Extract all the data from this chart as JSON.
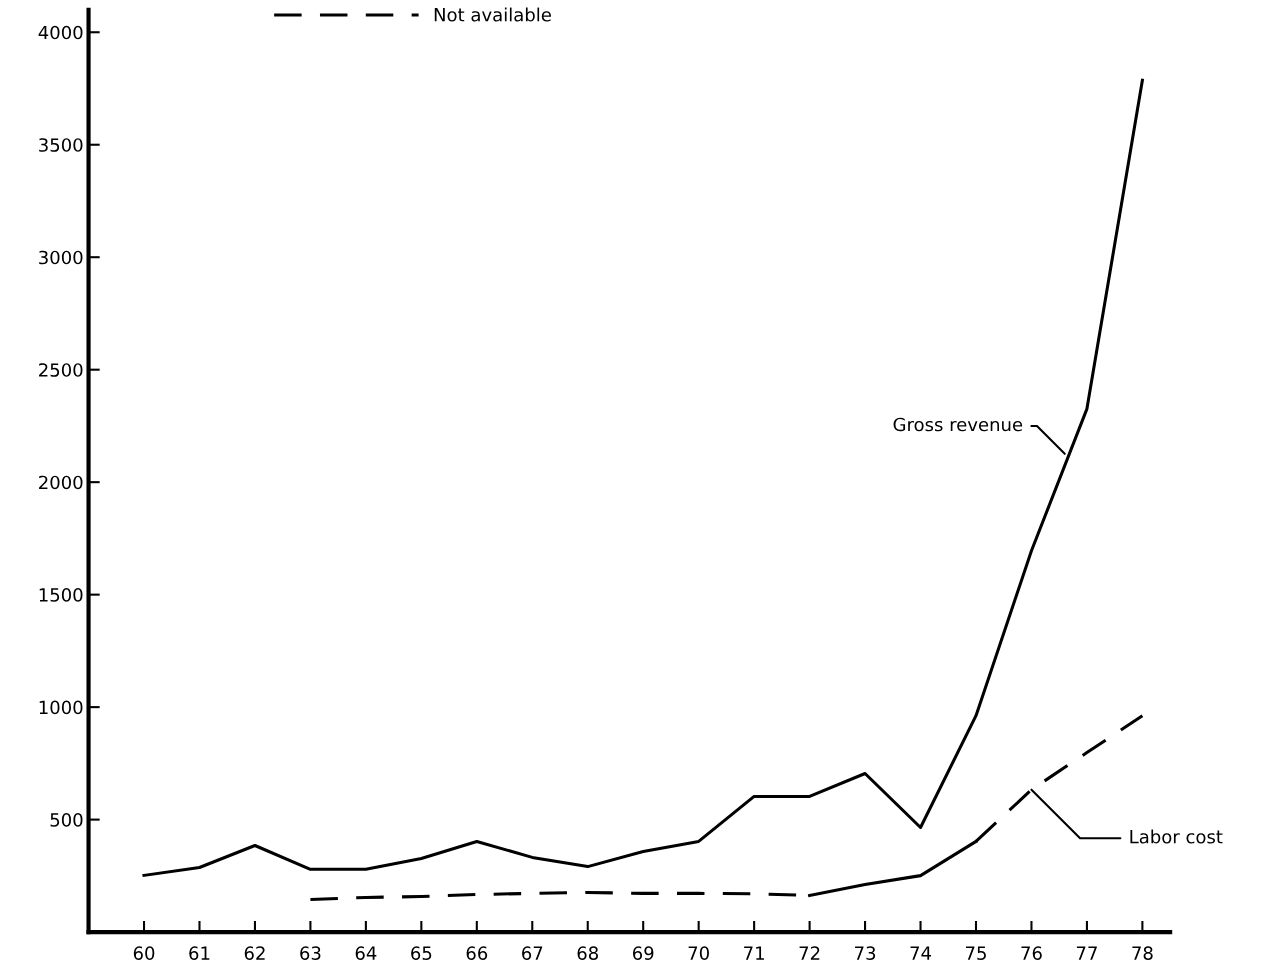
{
  "chart_data": {
    "type": "line",
    "x": [
      60,
      61,
      62,
      63,
      64,
      65,
      66,
      67,
      68,
      69,
      70,
      71,
      72,
      73,
      74,
      75,
      76,
      77,
      78
    ],
    "series": [
      {
        "color": "#000000",
        "line_style": "solid",
        "values": [
          252,
          287,
          385,
          279,
          279,
          327,
          403,
          332,
          291,
          358,
          403,
          603,
          603,
          705,
          465,
          962,
          1695,
          2326,
          3787
        ]
      },
      {
        "name": "Not available",
        "color": "#000000",
        "line_style": "dashed",
        "values": [
          null,
          null,
          null,
          145,
          154,
          158,
          167,
          172,
          176,
          172,
          172,
          170,
          163,
          null,
          null,
          403,
          633,
          798,
          962
        ]
      },
      {
        "color": "#000000",
        "line_style": "solid",
        "values": [
          null,
          null,
          null,
          null,
          null,
          null,
          null,
          null,
          null,
          null,
          null,
          null,
          163,
          212,
          251,
          403,
          null,
          null,
          null
        ]
      }
    ],
    "annotations": [
      {
        "text": "Gross revenue",
        "x": 76.6,
        "y": 2126
      },
      {
        "text": "Labor cost",
        "x": 76,
        "y": 633
      }
    ],
    "xlim": [
      59.0,
      78.5
    ],
    "xticks": [
      60,
      61,
      62,
      63,
      64,
      65,
      66,
      67,
      68,
      69,
      70,
      71,
      72,
      73,
      74,
      75,
      76,
      77,
      78
    ],
    "ylim": [
      0,
      4100
    ],
    "yticks": [
      500,
      1000,
      1500,
      2000,
      2500,
      3000,
      3500,
      4000
    ],
    "grid": false,
    "legend": "top",
    "marker": "none"
  }
}
